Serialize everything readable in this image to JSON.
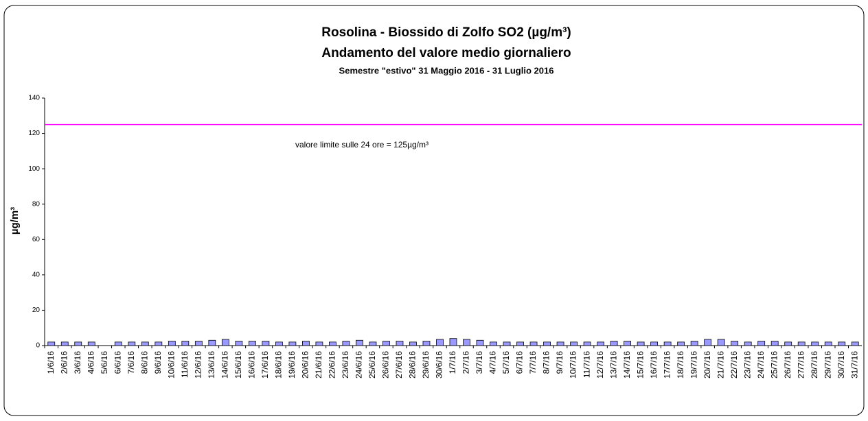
{
  "chart_data": {
    "type": "bar",
    "title": "Rosolina - Biossido di Zolfo SO2 (µg/m³)",
    "subtitle": "Andamento del valore medio giornaliero",
    "subtitle2": "Semestre \"estivo\" 31 Maggio 2016 - 31 Luglio 2016",
    "ylabel": "µg/m³",
    "categories": [
      "1/6/16",
      "2/6/16",
      "3/6/16",
      "4/6/16",
      "5/6/16",
      "6/6/16",
      "7/6/16",
      "8/6/16",
      "9/6/16",
      "10/6/16",
      "11/6/16",
      "12/6/16",
      "13/6/16",
      "14/6/16",
      "15/6/16",
      "16/6/16",
      "17/6/16",
      "18/6/16",
      "19/6/16",
      "20/6/16",
      "21/6/16",
      "22/6/16",
      "23/6/16",
      "24/6/16",
      "25/6/16",
      "26/6/16",
      "27/6/16",
      "28/6/16",
      "29/6/16",
      "30/6/16",
      "1/7/16",
      "2/7/16",
      "3/7/16",
      "4/7/16",
      "5/7/16",
      "6/7/16",
      "7/7/16",
      "8/7/16",
      "9/7/16",
      "10/7/16",
      "11/7/16",
      "12/7/16",
      "13/7/16",
      "14/7/16",
      "15/7/16",
      "16/7/16",
      "17/7/16",
      "18/7/16",
      "19/7/16",
      "20/7/16",
      "21/7/16",
      "22/7/16",
      "23/7/16",
      "24/7/16",
      "25/7/16",
      "26/7/16",
      "27/7/16",
      "28/7/16",
      "29/7/16",
      "30/7/16",
      "31/7/16"
    ],
    "values": [
      2,
      2,
      2,
      2,
      null,
      2,
      2,
      2,
      2,
      2.5,
      2.5,
      2.5,
      3,
      3.5,
      2.5,
      2.5,
      2.5,
      2,
      2,
      2.5,
      2,
      2,
      2.5,
      3,
      2,
      2.5,
      2.5,
      2,
      2.5,
      3.5,
      4,
      3.5,
      3,
      2,
      2,
      2,
      2,
      2,
      2,
      2,
      2,
      2,
      2.5,
      2.5,
      2,
      2,
      2,
      2,
      2.5,
      3.5,
      3.5,
      2.5,
      2,
      2.5,
      2.5,
      2,
      2,
      2,
      2,
      2,
      2
    ],
    "color": "#9999ff",
    "ylim": [
      0,
      140
    ],
    "yticks": [
      0,
      20,
      40,
      60,
      80,
      100,
      120,
      140
    ],
    "limit": {
      "value": 125,
      "color": "#ff00ff",
      "label": "valore limite sulle 24 ore = 125µg/m³"
    }
  }
}
